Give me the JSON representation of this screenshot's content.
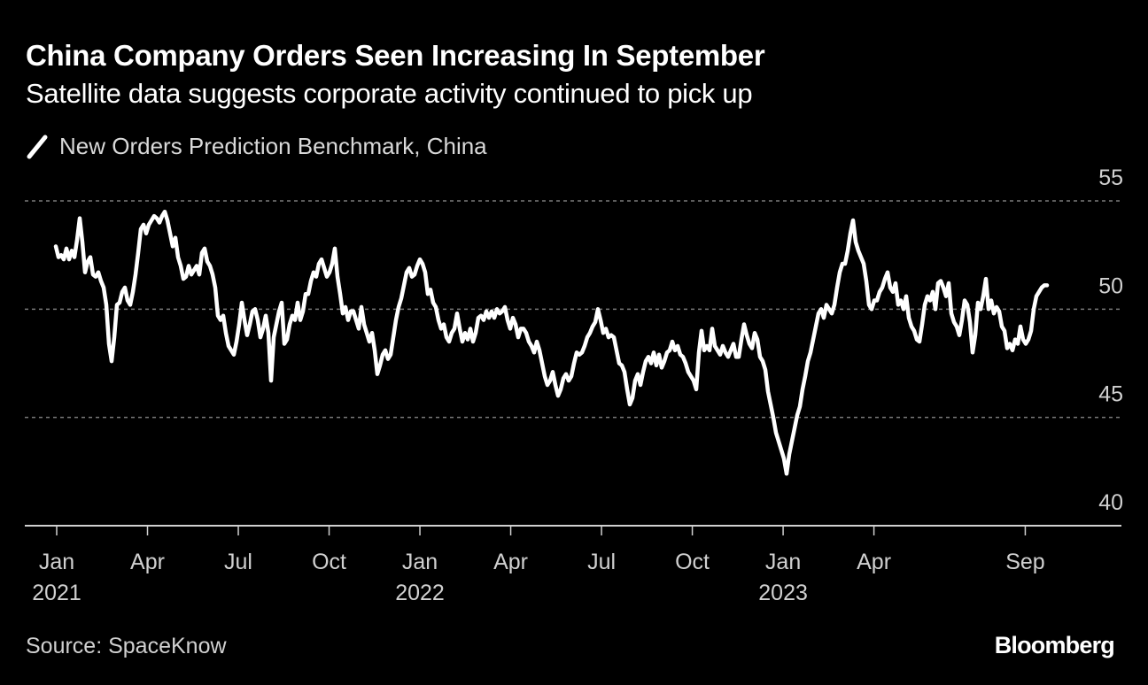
{
  "header": {
    "title": "China Company Orders Seen Increasing In September",
    "subtitle": "Satellite data suggests corporate activity continued to pick up"
  },
  "footer": {
    "source": "Source: SpaceKnow",
    "brand": "Bloomberg"
  },
  "colors": {
    "background": "#000000",
    "line": "#ffffff",
    "grid": "#7a7a7a",
    "axis": "#d0d0d0"
  },
  "chart_data": {
    "type": "line",
    "title": "China Company Orders Seen Increasing In September",
    "subtitle": "Satellite data suggests corporate activity continued to pick up",
    "xlabel": "",
    "ylabel": "",
    "ylim": [
      40,
      55
    ],
    "yticks": [
      40,
      45,
      50,
      55
    ],
    "ytick_labels": [
      "40",
      "45",
      "50",
      "55"
    ],
    "grid": true,
    "legend_position": "top-left",
    "xticks": [
      {
        "month": 0,
        "label": "Jan",
        "year": "2021"
      },
      {
        "month": 3,
        "label": "Apr",
        "year": ""
      },
      {
        "month": 6,
        "label": "Jul",
        "year": ""
      },
      {
        "month": 9,
        "label": "Oct",
        "year": ""
      },
      {
        "month": 12,
        "label": "Jan",
        "year": "2022"
      },
      {
        "month": 15,
        "label": "Apr",
        "year": ""
      },
      {
        "month": 18,
        "label": "Jul",
        "year": ""
      },
      {
        "month": 21,
        "label": "Oct",
        "year": ""
      },
      {
        "month": 24,
        "label": "Jan",
        "year": "2023"
      },
      {
        "month": 27,
        "label": "Apr",
        "year": ""
      },
      {
        "month": 32,
        "label": "Sep",
        "year": ""
      }
    ],
    "xlim_months": [
      -1.05,
      35.5
    ],
    "x_unit": "months since Jan 2021",
    "series": [
      {
        "name": "New Orders Prediction Benchmark, China",
        "x_start_month": -0.03,
        "x_step_month": 0.0878,
        "values": [
          52.9,
          52.4,
          52.5,
          52.3,
          52.8,
          52.3,
          52.7,
          52.4,
          53.2,
          54.2,
          53.1,
          51.7,
          52.2,
          52.4,
          51.6,
          51.5,
          51.7,
          51.3,
          51.0,
          50.2,
          48.4,
          47.6,
          48.7,
          50.2,
          50.3,
          50.8,
          51.0,
          50.4,
          50.2,
          50.8,
          51.6,
          52.6,
          53.7,
          53.9,
          53.5,
          53.9,
          54.1,
          54.3,
          54.2,
          54.0,
          54.3,
          54.5,
          54.1,
          53.5,
          52.9,
          53.3,
          52.4,
          52.0,
          51.4,
          51.5,
          52.0,
          51.6,
          51.8,
          52.0,
          51.6,
          52.6,
          52.8,
          52.2,
          52.0,
          51.6,
          51.0,
          49.7,
          49.5,
          49.7,
          48.9,
          48.3,
          48.1,
          47.9,
          48.5,
          49.3,
          50.3,
          49.5,
          48.8,
          49.3,
          49.9,
          50.0,
          49.5,
          48.7,
          49.1,
          49.7,
          48.9,
          46.7,
          48.7,
          49.3,
          49.9,
          50.3,
          48.4,
          48.6,
          49.3,
          49.7,
          49.5,
          50.3,
          49.5,
          49.9,
          50.7,
          50.7,
          51.3,
          51.7,
          51.5,
          52.1,
          52.3,
          51.9,
          51.5,
          51.7,
          52.1,
          52.8,
          51.5,
          50.7,
          49.8,
          50.1,
          49.5,
          49.9,
          49.9,
          49.5,
          49.1,
          50.1,
          49.3,
          48.9,
          48.5,
          48.9,
          48.1,
          47.0,
          47.4,
          47.9,
          48.1,
          47.7,
          47.9,
          48.7,
          49.5,
          50.1,
          50.5,
          51.1,
          51.7,
          51.9,
          51.5,
          51.6,
          52.0,
          52.3,
          52.1,
          51.7,
          50.7,
          50.9,
          50.3,
          50.1,
          49.5,
          49.1,
          49.3,
          48.7,
          48.5,
          48.9,
          49.1,
          49.8,
          49.1,
          48.5,
          48.9,
          48.6,
          49.1,
          48.5,
          48.9,
          49.6,
          49.7,
          49.5,
          49.9,
          49.6,
          49.9,
          49.6,
          50.0,
          49.8,
          49.9,
          50.1,
          49.5,
          49.1,
          49.6,
          49.3,
          48.7,
          49.1,
          49.1,
          48.9,
          48.5,
          48.3,
          48.0,
          48.5,
          48.1,
          47.5,
          46.9,
          46.5,
          46.7,
          47.1,
          46.5,
          46.0,
          46.3,
          46.8,
          47.0,
          46.7,
          46.9,
          47.5,
          48.0,
          47.9,
          48.0,
          48.3,
          48.7,
          48.9,
          49.2,
          49.4,
          50.0,
          49.5,
          48.9,
          49.1,
          48.7,
          48.8,
          48.7,
          48.1,
          47.5,
          47.4,
          47.1,
          46.3,
          45.6,
          45.9,
          46.7,
          47.0,
          46.5,
          47.1,
          47.6,
          47.8,
          47.5,
          48.0,
          47.4,
          47.9,
          47.3,
          47.6,
          48.0,
          48.1,
          48.5,
          48.1,
          48.3,
          47.9,
          47.8,
          47.5,
          47.1,
          46.9,
          46.7,
          46.3,
          48.0,
          49.0,
          48.1,
          48.3,
          48.1,
          49.1,
          48.3,
          48.1,
          47.9,
          48.3,
          48.0,
          47.8,
          48.1,
          48.4,
          47.8,
          47.8,
          48.6,
          49.3,
          48.8,
          48.4,
          48.2,
          48.9,
          48.6,
          47.8,
          47.6,
          47.2,
          46.2,
          45.6,
          45.0,
          44.3,
          43.9,
          43.5,
          43.1,
          42.4,
          43.3,
          43.9,
          44.5,
          45.1,
          45.5,
          46.3,
          46.9,
          47.6,
          48.0,
          48.6,
          49.2,
          49.8,
          50.0,
          49.6,
          50.2,
          50.0,
          49.8,
          50.2,
          51.0,
          51.7,
          52.1,
          52.1,
          52.7,
          53.5,
          54.1,
          53.1,
          52.7,
          52.4,
          52.1,
          51.3,
          50.2,
          50.0,
          50.4,
          50.4,
          50.8,
          51.0,
          51.4,
          51.7,
          51.0,
          50.8,
          51.2,
          50.2,
          50.4,
          50.0,
          50.6,
          49.6,
          49.2,
          49.0,
          48.6,
          48.5,
          49.3,
          50.2,
          50.6,
          50.4,
          50.8,
          50.0,
          51.2,
          51.3,
          51.0,
          50.6,
          51.2,
          49.8,
          49.4,
          49.2,
          48.8,
          49.5,
          50.4,
          50.2,
          49.4,
          48.0,
          48.8,
          50.3,
          50.0,
          50.6,
          51.4,
          50.0,
          50.4,
          49.8,
          50.1,
          49.9,
          49.2,
          49.0,
          48.2,
          48.4,
          48.1,
          48.6,
          48.4,
          49.2,
          48.6,
          48.4,
          48.6,
          49.0,
          50.0,
          50.6,
          50.8,
          51.0,
          51.1,
          51.1
        ]
      }
    ]
  }
}
